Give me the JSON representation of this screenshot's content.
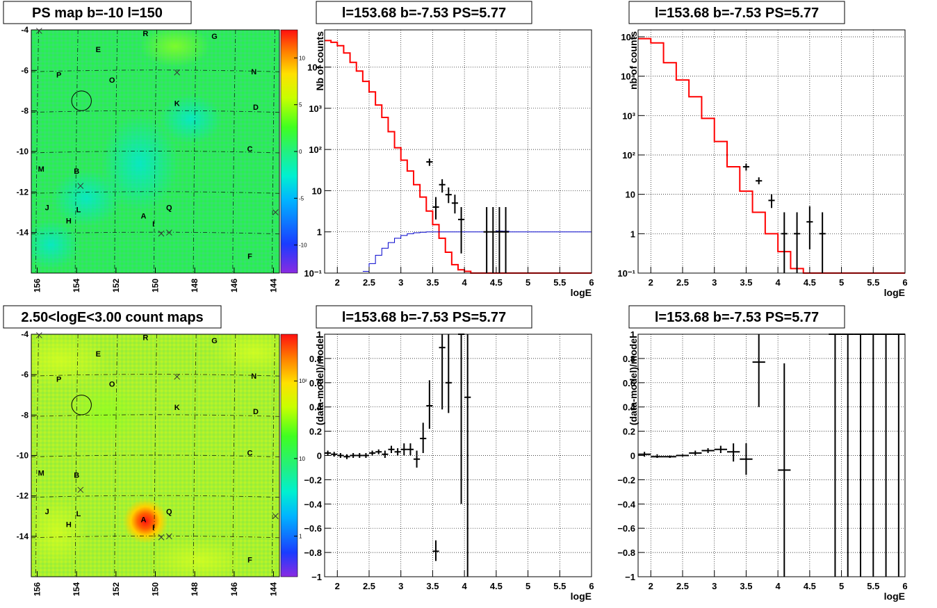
{
  "colors": {
    "data": "#000000",
    "model": "#ff0000",
    "efficiency": "#0000cc",
    "grid": "#000000"
  },
  "map_labels": [
    {
      "t": "E",
      "l": 152.9,
      "b": -5.1
    },
    {
      "t": "R",
      "l": 150.5,
      "b": -4.3
    },
    {
      "t": "G",
      "l": 147.0,
      "b": -4.45
    },
    {
      "t": "P",
      "l": 154.9,
      "b": -6.35
    },
    {
      "t": "O",
      "l": 152.2,
      "b": -6.6
    },
    {
      "t": "N",
      "l": 145.0,
      "b": -6.2
    },
    {
      "t": "K",
      "l": 148.9,
      "b": -7.75
    },
    {
      "t": "D",
      "l": 144.9,
      "b": -7.95
    },
    {
      "t": "C",
      "l": 145.2,
      "b": -10.0
    },
    {
      "t": "M",
      "l": 155.8,
      "b": -11.0
    },
    {
      "t": "B",
      "l": 154.0,
      "b": -11.1
    },
    {
      "t": "J",
      "l": 155.5,
      "b": -12.9
    },
    {
      "t": "L",
      "l": 153.9,
      "b": -13.0
    },
    {
      "t": "H",
      "l": 154.4,
      "b": -13.55
    },
    {
      "t": "A",
      "l": 150.6,
      "b": -13.3
    },
    {
      "t": "Q",
      "l": 149.3,
      "b": -12.9
    },
    {
      "t": "I",
      "l": 150.1,
      "b": -13.7
    },
    {
      "t": "F",
      "l": 145.2,
      "b": -15.3
    }
  ],
  "map_crosses": [
    {
      "l": 148.9,
      "b": -6.1
    },
    {
      "l": 153.8,
      "b": -11.7
    },
    {
      "l": 149.7,
      "b": -14.05
    },
    {
      "l": 149.3,
      "b": -14.0
    },
    {
      "l": 143.9,
      "b": -13.0
    },
    {
      "l": 155.9,
      "b": -4.05
    }
  ],
  "map_circle": {
    "l": 153.75,
    "b": -7.5,
    "r_deg": 0.5
  },
  "chart_data": [
    {
      "type": "heatmap",
      "title": "PS map b=-10 l=150",
      "xlim": [
        156.3,
        143.7
      ],
      "ylim": [
        -16,
        -4
      ],
      "xticks": [
        156,
        154,
        152,
        150,
        148,
        146,
        144
      ],
      "yticks": [
        -4,
        -6,
        -8,
        -10,
        -12,
        -14
      ],
      "colorbar": {
        "scale": "linear",
        "range": [
          -13,
          13
        ],
        "ticks": [
          10,
          5,
          0,
          -5,
          -10
        ],
        "labels": [
          "10",
          "5",
          "0",
          "-5",
          "-10"
        ]
      }
    },
    {
      "type": "line",
      "title": "l=153.68 b=-7.53 PS=5.77",
      "xlabel": "logE",
      "ylabel": "Nb of counts",
      "xlim": [
        1.8,
        6
      ],
      "ylim": [
        0.1,
        80000
      ],
      "yscale": "log",
      "xticks": [
        2,
        2.5,
        3,
        3.5,
        4,
        4.5,
        5,
        5.5,
        6
      ],
      "xticklabels": [
        "2",
        "2.5",
        "3",
        "3.5",
        "4",
        "4.5",
        "5",
        "5.5",
        "6"
      ],
      "yticks": [
        0.1,
        1,
        10,
        100,
        1000,
        10000
      ],
      "yticklabels": [
        "10⁻¹",
        "1",
        "10",
        "10²",
        "10³",
        "10⁴"
      ],
      "series": [
        {
          "kind": "model_step",
          "x_edges": [
            1.8,
            1.9,
            2.0,
            2.1,
            2.2,
            2.3,
            2.4,
            2.5,
            2.6,
            2.7,
            2.8,
            2.9,
            3.0,
            3.1,
            3.2,
            3.3,
            3.4,
            3.5,
            3.6,
            3.7,
            3.8,
            3.9,
            4.0,
            4.1,
            4.2,
            4.3,
            4.4,
            4.5,
            4.6,
            4.7,
            4.8,
            4.9,
            5.0,
            6.0
          ],
          "values": [
            44000,
            40000,
            33000,
            22000,
            13000,
            8000,
            4500,
            2500,
            1200,
            600,
            270,
            110,
            55,
            30,
            14,
            7,
            3.2,
            1.5,
            0.7,
            0.32,
            0.16,
            0.12,
            0.11,
            0.1,
            0.1,
            0.1,
            0.1,
            0.1,
            0.1,
            0.1,
            0.1,
            0.1,
            0.1
          ]
        },
        {
          "kind": "eff_step",
          "x_edges": [
            2.4,
            2.5,
            2.6,
            2.7,
            2.8,
            2.9,
            3.0,
            3.1,
            3.2,
            3.3,
            3.4,
            3.5,
            3.6,
            4.5,
            4.6,
            4.7,
            6.0
          ],
          "values": [
            0.11,
            0.17,
            0.27,
            0.4,
            0.55,
            0.7,
            0.82,
            0.9,
            0.95,
            0.98,
            1.0,
            1.0,
            1.0,
            1.05,
            1.04,
            1.0
          ]
        },
        {
          "kind": "data_points",
          "x": [
            3.45,
            3.55,
            3.65,
            3.75,
            3.85,
            3.95,
            4.35,
            4.45,
            4.55,
            4.65
          ],
          "y": [
            50,
            4,
            14,
            8,
            5,
            2,
            1,
            1,
            1,
            1
          ],
          "lo": [
            40,
            2,
            9,
            5,
            2.8,
            0.3,
            0.1,
            0.1,
            0.1,
            0.1
          ],
          "hi": [
            60,
            7,
            19,
            12,
            8,
            4,
            4,
            4,
            4,
            4
          ]
        }
      ]
    },
    {
      "type": "line",
      "title": "l=153.68 b=-7.53 PS=5.77",
      "xlabel": "logE",
      "ylabel": "nb of counts",
      "xlim": [
        1.8,
        6
      ],
      "ylim": [
        0.1,
        150000
      ],
      "yscale": "log",
      "xticks": [
        2,
        2.5,
        3,
        3.5,
        4,
        4.5,
        5,
        5.5,
        6
      ],
      "xticklabels": [
        "2",
        "2.5",
        "3",
        "3.5",
        "4",
        "4.5",
        "5",
        "5.5",
        "6"
      ],
      "yticks": [
        0.1,
        1,
        10,
        100,
        1000,
        10000,
        100000
      ],
      "yticklabels": [
        "10⁻¹",
        "1",
        "10",
        "10²",
        "10³",
        "10⁴",
        "10⁵"
      ],
      "series": [
        {
          "kind": "model_step",
          "x_edges": [
            1.8,
            2.0,
            2.2,
            2.4,
            2.6,
            2.8,
            3.0,
            3.2,
            3.4,
            3.6,
            3.8,
            4.0,
            4.2,
            4.4,
            4.6,
            4.8,
            6.0
          ],
          "values": [
            90000,
            70000,
            22000,
            8000,
            3000,
            850,
            220,
            50,
            12,
            3.5,
            1.0,
            0.35,
            0.13,
            0.1,
            0.1,
            0.1
          ]
        },
        {
          "kind": "data_points",
          "x": [
            3.5,
            3.7,
            3.9,
            4.1,
            4.3,
            4.5,
            4.7
          ],
          "y": [
            50,
            22,
            7,
            1,
            1,
            2,
            1
          ],
          "lo": [
            40,
            18,
            4.5,
            0.1,
            0.1,
            0.4,
            0.1
          ],
          "hi": [
            60,
            27,
            10,
            3.5,
            3.5,
            5,
            3.5
          ]
        }
      ]
    },
    {
      "type": "heatmap",
      "title": "2.50<logE<3.00 count maps",
      "xlim": [
        156.3,
        143.7
      ],
      "ylim": [
        -16,
        -4
      ],
      "xticks": [
        156,
        154,
        152,
        150,
        148,
        146,
        144
      ],
      "yticks": [
        -4,
        -6,
        -8,
        -10,
        -12,
        -14
      ],
      "colorbar": {
        "scale": "log",
        "range": [
          0.3,
          400
        ],
        "ticks": [
          100,
          10,
          1
        ],
        "labels": [
          "10²",
          "10",
          "1"
        ]
      }
    },
    {
      "type": "scatter",
      "title": "l=153.68 b=-7.53 PS=5.77",
      "xlabel": "logE",
      "ylabel": "(data-model)/model",
      "xlim": [
        1.8,
        6
      ],
      "ylim": [
        -1,
        1
      ],
      "xticks": [
        2,
        2.5,
        3,
        3.5,
        4,
        4.5,
        5,
        5.5,
        6
      ],
      "xticklabels": [
        "2",
        "2.5",
        "3",
        "3.5",
        "4",
        "4.5",
        "5",
        "5.5",
        "6"
      ],
      "yticks": [
        -1,
        -0.8,
        -0.6,
        -0.4,
        -0.2,
        0,
        0.2,
        0.4,
        0.6,
        0.8,
        1
      ],
      "yticklabels": [
        "−1",
        "−0.8",
        "−0.6",
        "−0.4",
        "−0.2",
        "0",
        "0.2",
        "0.4",
        "0.6",
        "0.8",
        "1"
      ],
      "series": [
        {
          "kind": "data_points",
          "halfwidth": 0.05,
          "x": [
            1.85,
            1.95,
            2.05,
            2.15,
            2.25,
            2.35,
            2.45,
            2.55,
            2.65,
            2.75,
            2.85,
            2.95,
            3.05,
            3.15,
            3.25,
            3.35,
            3.45,
            3.55,
            3.65,
            3.75,
            3.95,
            4.05
          ],
          "y": [
            0.02,
            0.01,
            0.0,
            -0.01,
            0.0,
            0.0,
            0.0,
            0.02,
            0.03,
            0.01,
            0.05,
            0.03,
            0.05,
            0.05,
            -0.03,
            0.14,
            0.41,
            -0.79,
            0.89,
            0.6,
            1.0,
            0.48
          ],
          "lo": [
            0.0,
            -0.01,
            -0.02,
            -0.03,
            -0.02,
            -0.02,
            -0.02,
            0.0,
            0.01,
            -0.02,
            0.02,
            0.0,
            0.0,
            0.0,
            -0.1,
            0.02,
            0.22,
            -0.87,
            0.38,
            0.35,
            -0.4,
            -1.0
          ],
          "hi": [
            0.04,
            0.03,
            0.02,
            0.01,
            0.02,
            0.02,
            0.02,
            0.04,
            0.05,
            0.04,
            0.08,
            0.06,
            0.1,
            0.1,
            0.04,
            0.27,
            0.62,
            -0.7,
            1.0,
            1.0,
            1.0,
            1.0
          ]
        }
      ]
    },
    {
      "type": "scatter",
      "title": "l=153.68 b=-7.53 PS=5.77",
      "xlabel": "logE",
      "ylabel": "(data-model)/model",
      "xlim": [
        1.8,
        6
      ],
      "ylim": [
        -1,
        1
      ],
      "xticks": [
        2,
        2.5,
        3,
        3.5,
        4,
        4.5,
        5,
        5.5,
        6
      ],
      "xticklabels": [
        "2",
        "2.5",
        "3",
        "3.5",
        "4",
        "4.5",
        "5",
        "5.5",
        "6"
      ],
      "yticks": [
        -1,
        -0.8,
        -0.6,
        -0.4,
        -0.2,
        0,
        0.2,
        0.4,
        0.6,
        0.8,
        1
      ],
      "yticklabels": [
        "−1",
        "−0.8",
        "−0.6",
        "−0.4",
        "−0.2",
        "0",
        "0.2",
        "0.4",
        "0.6",
        "0.8",
        "1"
      ],
      "series": [
        {
          "kind": "data_points",
          "halfwidth": 0.1,
          "x": [
            1.9,
            2.1,
            2.3,
            2.5,
            2.7,
            2.9,
            3.1,
            3.3,
            3.5,
            3.7,
            4.1,
            4.9,
            5.1,
            5.3,
            5.5,
            5.7,
            5.9
          ],
          "y": [
            0.01,
            -0.01,
            -0.01,
            0.0,
            0.02,
            0.04,
            0.05,
            0.03,
            -0.03,
            0.77,
            -0.12,
            1.0,
            1.0,
            1.0,
            1.0,
            1.0,
            1.0
          ],
          "lo": [
            -0.01,
            -0.02,
            -0.02,
            -0.01,
            0.0,
            0.02,
            0.02,
            -0.05,
            -0.16,
            0.4,
            -1.0,
            -1.0,
            -1.0,
            -1.0,
            -1.0,
            -1.0,
            -1.0
          ],
          "hi": [
            0.03,
            0.01,
            0.0,
            0.01,
            0.04,
            0.06,
            0.08,
            0.1,
            0.1,
            1.0,
            0.76,
            1.0,
            1.0,
            1.0,
            1.0,
            1.0,
            1.0
          ]
        }
      ]
    }
  ]
}
